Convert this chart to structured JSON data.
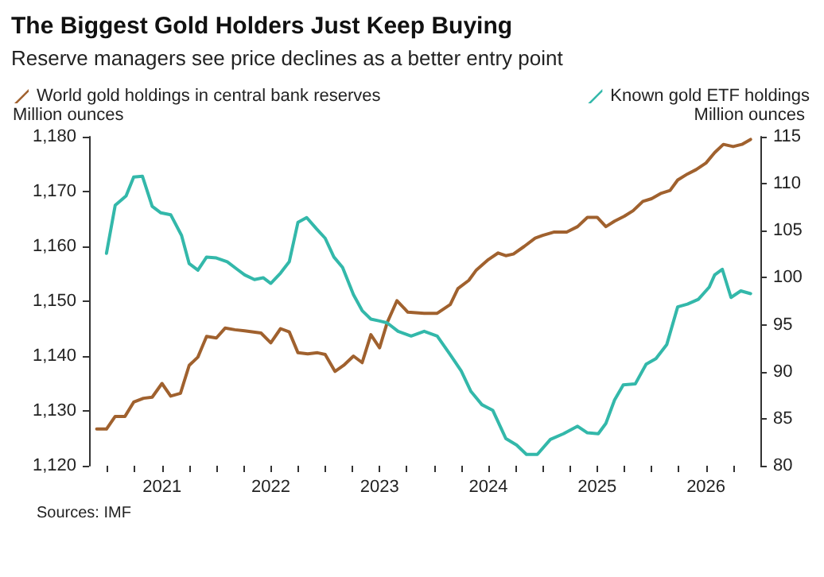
{
  "chart_data": {
    "type": "line",
    "title": "The Biggest Gold Holders Just Keep Buying",
    "subtitle": "Reserve managers see price declines as a better entry point",
    "ylabel": "Million ounces",
    "y2label": "Million ounces",
    "annotations": [
      "Sources: IMF"
    ],
    "legend": "top",
    "marker": "none",
    "line_style": "solid",
    "xlim": [
      2020.33,
      2026.5
    ],
    "xticks": [
      {
        "value": 2020.5,
        "label": null
      },
      {
        "value": 2020.75,
        "label": null
      },
      {
        "value": 2021,
        "label": "2021"
      },
      {
        "value": 2021.25,
        "label": null
      },
      {
        "value": 2021.5,
        "label": null
      },
      {
        "value": 2021.75,
        "label": null
      },
      {
        "value": 2022,
        "label": "2022"
      },
      {
        "value": 2022.25,
        "label": null
      },
      {
        "value": 2022.5,
        "label": null
      },
      {
        "value": 2022.75,
        "label": null
      },
      {
        "value": 2023,
        "label": "2023"
      },
      {
        "value": 2023.25,
        "label": null
      },
      {
        "value": 2023.5,
        "label": null
      },
      {
        "value": 2023.75,
        "label": null
      },
      {
        "value": 2024,
        "label": "2024"
      },
      {
        "value": 2024.25,
        "label": null
      },
      {
        "value": 2024.5,
        "label": null
      },
      {
        "value": 2024.75,
        "label": null
      },
      {
        "value": 2025,
        "label": "2025"
      },
      {
        "value": 2025.25,
        "label": null
      },
      {
        "value": 2025.5,
        "label": null
      },
      {
        "value": 2025.75,
        "label": null
      },
      {
        "value": 2026,
        "label": "2026"
      },
      {
        "value": 2026.25,
        "label": null
      }
    ],
    "ylim": [
      1120,
      1180
    ],
    "yticks": [
      {
        "value": 1120,
        "label": "1,120"
      },
      {
        "value": 1130,
        "label": "1,130"
      },
      {
        "value": 1140,
        "label": "1,140"
      },
      {
        "value": 1150,
        "label": "1,150"
      },
      {
        "value": 1160,
        "label": "1,160"
      },
      {
        "value": 1170,
        "label": "1,170"
      },
      {
        "value": 1180,
        "label": "1,180"
      }
    ],
    "y2lim": [
      80,
      115
    ],
    "y2ticks": [
      80,
      85,
      90,
      95,
      100,
      105,
      110,
      115
    ],
    "series": [
      {
        "name": "World gold holdings in central bank reserves",
        "color": "#a0612e",
        "x": [
          2020.4,
          2020.49,
          2020.57,
          2020.66,
          2020.74,
          2020.83,
          2020.91,
          2021.0,
          2021.08,
          2021.17,
          2021.25,
          2021.33,
          2021.41,
          2021.5,
          2021.58,
          2021.67,
          2021.76,
          2021.91,
          2022.0,
          2022.09,
          2022.17,
          2022.25,
          2022.34,
          2022.43,
          2022.5,
          2022.59,
          2022.67,
          2022.76,
          2022.84,
          2022.92,
          2023.0,
          2023.07,
          2023.16,
          2023.26,
          2023.41,
          2023.53,
          2023.65,
          2023.72,
          2023.82,
          2023.89,
          2024.0,
          2024.09,
          2024.16,
          2024.23,
          2024.33,
          2024.43,
          2024.5,
          2024.6,
          2024.72,
          2024.82,
          2024.91,
          2025.0,
          2025.08,
          2025.16,
          2025.25,
          2025.33,
          2025.42,
          2025.5,
          2025.59,
          2025.67,
          2025.74,
          2025.83,
          2025.91,
          2026.0,
          2026.08,
          2026.16,
          2026.25,
          2026.33,
          2026.41
        ],
        "values": [
          1126.7,
          1126.7,
          1129.0,
          1129.0,
          1131.6,
          1132.3,
          1132.5,
          1135.0,
          1132.7,
          1133.2,
          1138.3,
          1139.8,
          1143.6,
          1143.3,
          1145.1,
          1144.8,
          1144.6,
          1144.2,
          1142.4,
          1145.0,
          1144.4,
          1140.6,
          1140.4,
          1140.6,
          1140.3,
          1137.2,
          1138.3,
          1140.0,
          1138.8,
          1143.9,
          1141.5,
          1146.1,
          1150.1,
          1148.0,
          1147.8,
          1147.8,
          1149.4,
          1152.3,
          1153.8,
          1155.7,
          1157.6,
          1158.8,
          1158.3,
          1158.6,
          1160.0,
          1161.5,
          1162.0,
          1162.6,
          1162.6,
          1163.6,
          1165.3,
          1165.3,
          1163.6,
          1164.6,
          1165.5,
          1166.5,
          1168.2,
          1168.7,
          1169.7,
          1170.2,
          1172.1,
          1173.2,
          1174.0,
          1175.2,
          1177.1,
          1178.6,
          1178.2,
          1178.6,
          1179.5
        ]
      },
      {
        "name": "Known gold ETF holdings",
        "color": "#33b8aa",
        "axis": "y2",
        "x": [
          2020.49,
          2020.57,
          2020.67,
          2020.74,
          2020.82,
          2020.91,
          2020.99,
          2021.08,
          2021.18,
          2021.25,
          2021.33,
          2021.41,
          2021.5,
          2021.6,
          2021.69,
          2021.76,
          2021.85,
          2021.93,
          2022.0,
          2022.09,
          2022.17,
          2022.25,
          2022.33,
          2022.42,
          2022.5,
          2022.58,
          2022.66,
          2022.76,
          2022.84,
          2022.92,
          2023.0,
          2023.07,
          2023.17,
          2023.29,
          2023.41,
          2023.53,
          2023.65,
          2023.75,
          2023.84,
          2023.94,
          2024.04,
          2024.16,
          2024.26,
          2024.35,
          2024.45,
          2024.57,
          2024.69,
          2024.82,
          2024.91,
          2025.01,
          2025.08,
          2025.16,
          2025.24,
          2025.35,
          2025.45,
          2025.54,
          2025.64,
          2025.74,
          2025.83,
          2025.93,
          2026.03,
          2026.08,
          2026.15,
          2026.23,
          2026.32,
          2026.41
        ],
        "values": [
          102.6,
          107.7,
          108.7,
          110.7,
          110.8,
          107.6,
          106.9,
          106.7,
          104.5,
          101.5,
          100.8,
          102.2,
          102.1,
          101.7,
          100.9,
          100.3,
          99.8,
          100.0,
          99.4,
          100.5,
          101.7,
          105.9,
          106.4,
          105.2,
          104.2,
          102.2,
          101.1,
          98.2,
          96.5,
          95.6,
          95.4,
          95.2,
          94.3,
          93.8,
          94.3,
          93.8,
          91.8,
          90.1,
          87.9,
          86.5,
          85.9,
          82.9,
          82.2,
          81.2,
          81.2,
          82.8,
          83.4,
          84.2,
          83.5,
          83.4,
          84.5,
          87.0,
          88.6,
          88.7,
          90.8,
          91.4,
          92.9,
          96.9,
          97.2,
          97.7,
          99.0,
          100.3,
          100.9,
          97.9,
          98.6,
          98.3
        ]
      }
    ]
  }
}
